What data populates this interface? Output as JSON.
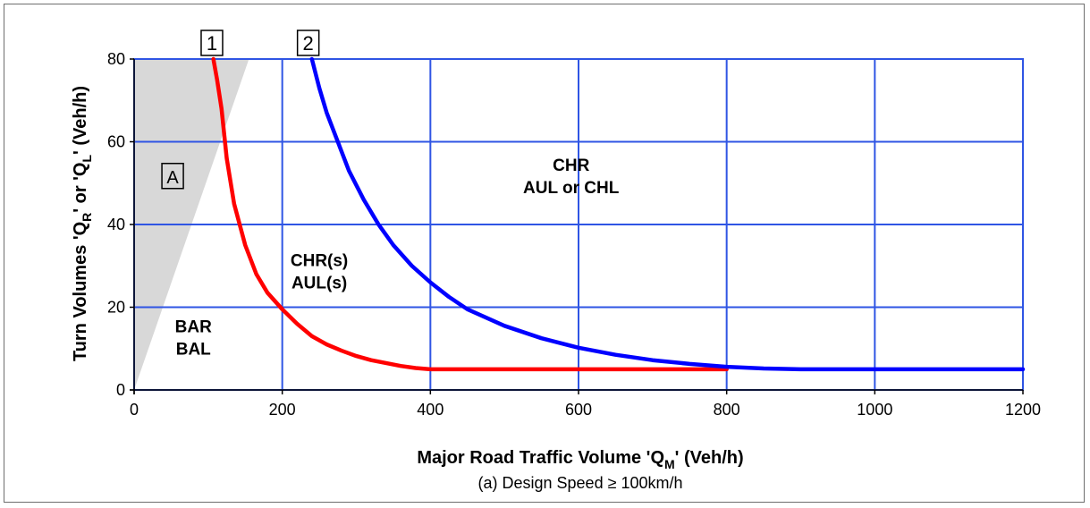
{
  "chart_data": {
    "type": "line",
    "xlabel_main": "Major Road Traffic Volume 'Q",
    "xlabel_sub": "M",
    "xlabel_tail": "' (Veh/h)",
    "subtitle": "(a) Design Speed ≥ 100km/h",
    "ylabel_parts": {
      "p1": "Turn Volumes 'Q",
      "s1": "R",
      "p2": "' or 'Q",
      "s2": "L",
      "p3": "' (Veh/h)"
    },
    "xlim": [
      0,
      1200
    ],
    "ylim": [
      0,
      80
    ],
    "x_ticks": [
      "0",
      "200",
      "400",
      "600",
      "800",
      "1000",
      "1200"
    ],
    "y_ticks": [
      "0",
      "20",
      "40",
      "60",
      "80"
    ],
    "grid": true,
    "series": [
      {
        "name": "1",
        "color": "#ff0000",
        "x": [
          107,
          112,
          118,
          125,
          135,
          150,
          165,
          180,
          200,
          220,
          240,
          260,
          280,
          300,
          320,
          340,
          360,
          380,
          400,
          500,
          600,
          700,
          800
        ],
        "y": [
          80,
          75,
          68,
          56,
          45,
          35,
          28,
          23.5,
          19.5,
          16,
          13,
          11,
          9.5,
          8.2,
          7.2,
          6.5,
          5.8,
          5.3,
          5,
          5,
          5,
          5,
          5
        ]
      },
      {
        "name": "2",
        "color": "#0000ff",
        "x": [
          240,
          250,
          260,
          275,
          290,
          310,
          330,
          350,
          375,
          400,
          425,
          450,
          500,
          550,
          600,
          650,
          700,
          750,
          800,
          850,
          900,
          1000,
          1100,
          1200
        ],
        "y": [
          80,
          73,
          67,
          60,
          53,
          46,
          40,
          35,
          30,
          26,
          22.5,
          19.5,
          15.5,
          12.5,
          10.2,
          8.5,
          7.2,
          6.3,
          5.6,
          5.2,
          5,
          5,
          5,
          5
        ]
      }
    ],
    "shaded_region": {
      "label": "A",
      "color": "#d8d8d8",
      "polygon": [
        [
          0,
          0
        ],
        [
          0,
          80
        ],
        [
          155,
          80
        ]
      ]
    },
    "annotations": [
      {
        "id": "bar",
        "lines": [
          "BAR",
          "BAL"
        ],
        "x": 80,
        "y": 14
      },
      {
        "id": "chrs",
        "lines": [
          "CHR(s)",
          "AUL(s)"
        ],
        "x": 250,
        "y": 30
      },
      {
        "id": "chr",
        "lines": [
          "CHR",
          "AUL or CHL"
        ],
        "x": 590,
        "y": 53
      }
    ],
    "curve_labels": [
      {
        "text": "1",
        "x": 105
      },
      {
        "text": "2",
        "x": 235
      }
    ]
  }
}
